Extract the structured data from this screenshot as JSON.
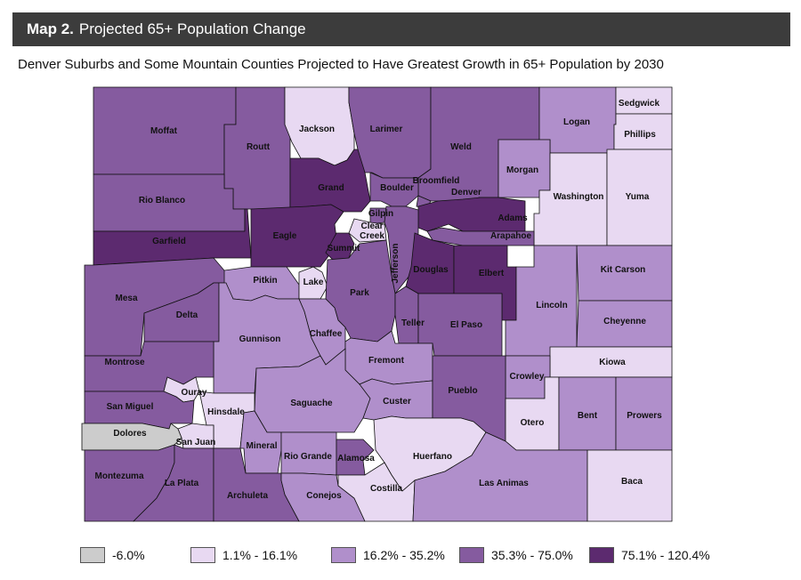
{
  "header": {
    "map_number": "Map 2.",
    "title": "Projected 65+ Population Change"
  },
  "subtitle": "Denver Suburbs and Some Mountain Counties Projected to Have Greatest Growth in 65+ Population by 2030",
  "colors": {
    "decline": "#cccccc",
    "low": "#e8d9f2",
    "mid": "#b08fcb",
    "high": "#855b9f",
    "highest": "#5c2a6f"
  },
  "legend": [
    {
      "label": "-6.0%",
      "class": "decline"
    },
    {
      "label": "1.1% - 16.1%",
      "class": "low"
    },
    {
      "label": "16.2% - 35.2%",
      "class": "mid"
    },
    {
      "label": "35.3% - 75.0%",
      "class": "high"
    },
    {
      "label": "75.1% - 120.4%",
      "class": "highest"
    }
  ],
  "counties": [
    {
      "name": "Moffat",
      "class": "high"
    },
    {
      "name": "Routt",
      "class": "high"
    },
    {
      "name": "Jackson",
      "class": "low"
    },
    {
      "name": "Larimer",
      "class": "high"
    },
    {
      "name": "Weld",
      "class": "high"
    },
    {
      "name": "Logan",
      "class": "mid"
    },
    {
      "name": "Sedgwick",
      "class": "low"
    },
    {
      "name": "Phillips",
      "class": "low"
    },
    {
      "name": "Rio Blanco",
      "class": "high"
    },
    {
      "name": "Grand",
      "class": "highest"
    },
    {
      "name": "Boulder",
      "class": "high"
    },
    {
      "name": "Broomfield",
      "class": "high"
    },
    {
      "name": "Denver",
      "class": "high"
    },
    {
      "name": "Morgan",
      "class": "mid"
    },
    {
      "name": "Washington",
      "class": "low"
    },
    {
      "name": "Yuma",
      "class": "low"
    },
    {
      "name": "Garfield",
      "class": "highest"
    },
    {
      "name": "Eagle",
      "class": "highest"
    },
    {
      "name": "Gilpin",
      "class": "high"
    },
    {
      "name": "Clear Creek",
      "class": "low"
    },
    {
      "name": "Summit",
      "class": "highest"
    },
    {
      "name": "Adams",
      "class": "highest"
    },
    {
      "name": "Arapahoe",
      "class": "high"
    },
    {
      "name": "Jefferson",
      "class": "high"
    },
    {
      "name": "Douglas",
      "class": "highest"
    },
    {
      "name": "Elbert",
      "class": "highest"
    },
    {
      "name": "Kit Carson",
      "class": "mid"
    },
    {
      "name": "Mesa",
      "class": "high"
    },
    {
      "name": "Pitkin",
      "class": "mid"
    },
    {
      "name": "Lake",
      "class": "low"
    },
    {
      "name": "Park",
      "class": "high"
    },
    {
      "name": "Lincoln",
      "class": "mid"
    },
    {
      "name": "Delta",
      "class": "high"
    },
    {
      "name": "Gunnison",
      "class": "mid"
    },
    {
      "name": "Chaffee",
      "class": "mid"
    },
    {
      "name": "Teller",
      "class": "high"
    },
    {
      "name": "El Paso",
      "class": "high"
    },
    {
      "name": "Cheyenne",
      "class": "mid"
    },
    {
      "name": "Montrose",
      "class": "high"
    },
    {
      "name": "Fremont",
      "class": "mid"
    },
    {
      "name": "Kiowa",
      "class": "low"
    },
    {
      "name": "Ouray",
      "class": "low"
    },
    {
      "name": "Crowley",
      "class": "mid"
    },
    {
      "name": "San Miguel",
      "class": "high"
    },
    {
      "name": "Hinsdale",
      "class": "low"
    },
    {
      "name": "Saguache",
      "class": "mid"
    },
    {
      "name": "Custer",
      "class": "mid"
    },
    {
      "name": "Pueblo",
      "class": "high"
    },
    {
      "name": "Otero",
      "class": "low"
    },
    {
      "name": "Bent",
      "class": "mid"
    },
    {
      "name": "Prowers",
      "class": "mid"
    },
    {
      "name": "Dolores",
      "class": "decline"
    },
    {
      "name": "San Juan",
      "class": "low"
    },
    {
      "name": "Mineral",
      "class": "mid"
    },
    {
      "name": "Rio Grande",
      "class": "mid"
    },
    {
      "name": "Alamosa",
      "class": "high"
    },
    {
      "name": "Huerfano",
      "class": "low"
    },
    {
      "name": "Montezuma",
      "class": "high"
    },
    {
      "name": "La Plata",
      "class": "high"
    },
    {
      "name": "Archuleta",
      "class": "high"
    },
    {
      "name": "Conejos",
      "class": "mid"
    },
    {
      "name": "Costilla",
      "class": "low"
    },
    {
      "name": "Las Animas",
      "class": "mid"
    },
    {
      "name": "Baca",
      "class": "low"
    }
  ]
}
